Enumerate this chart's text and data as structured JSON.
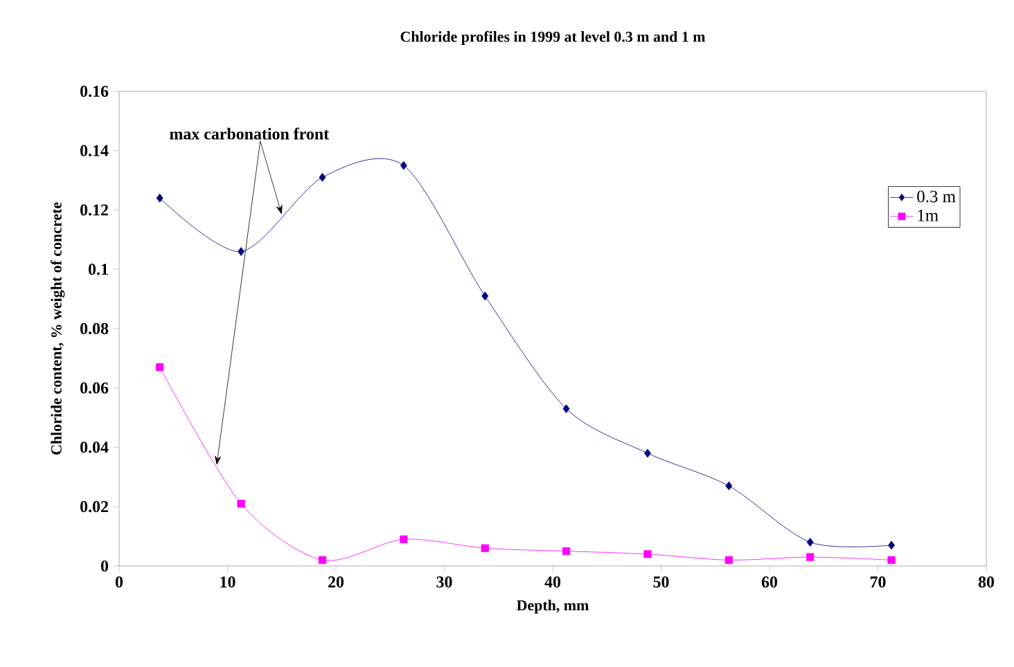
{
  "chart_data": {
    "type": "line",
    "title": "Chloride profiles in 1999 at level 0.3 m and 1 m",
    "xlabel": "Depth, mm",
    "ylabel": "Chloride content,  % weight of concrete",
    "x": [
      3.75,
      11.25,
      18.75,
      26.25,
      33.75,
      41.25,
      48.75,
      56.25,
      63.75,
      71.25
    ],
    "series": [
      {
        "name": "0.3 m",
        "color": "#000080",
        "marker": "diamond",
        "values": [
          0.124,
          0.106,
          0.131,
          0.135,
          0.091,
          0.053,
          0.038,
          0.027,
          0.008,
          0.007
        ]
      },
      {
        "name": "1m",
        "color": "#ff00ff",
        "marker": "square",
        "values": [
          0.067,
          0.021,
          0.002,
          0.009,
          0.006,
          0.005,
          0.004,
          0.002,
          0.003,
          0.002
        ]
      }
    ],
    "xlim": [
      0,
      80
    ],
    "xticks": [
      0,
      10,
      20,
      30,
      40,
      50,
      60,
      70,
      80
    ],
    "ylim": [
      0,
      0.16
    ],
    "yticks": [
      0,
      0.02,
      0.04,
      0.06,
      0.08,
      0.1,
      0.12,
      0.14,
      0.16
    ],
    "annotations": [
      {
        "text": "max carbonation front",
        "x": 9,
        "y": 0.034
      }
    ],
    "legend": "top right",
    "grid": false,
    "line_style": "solid"
  }
}
